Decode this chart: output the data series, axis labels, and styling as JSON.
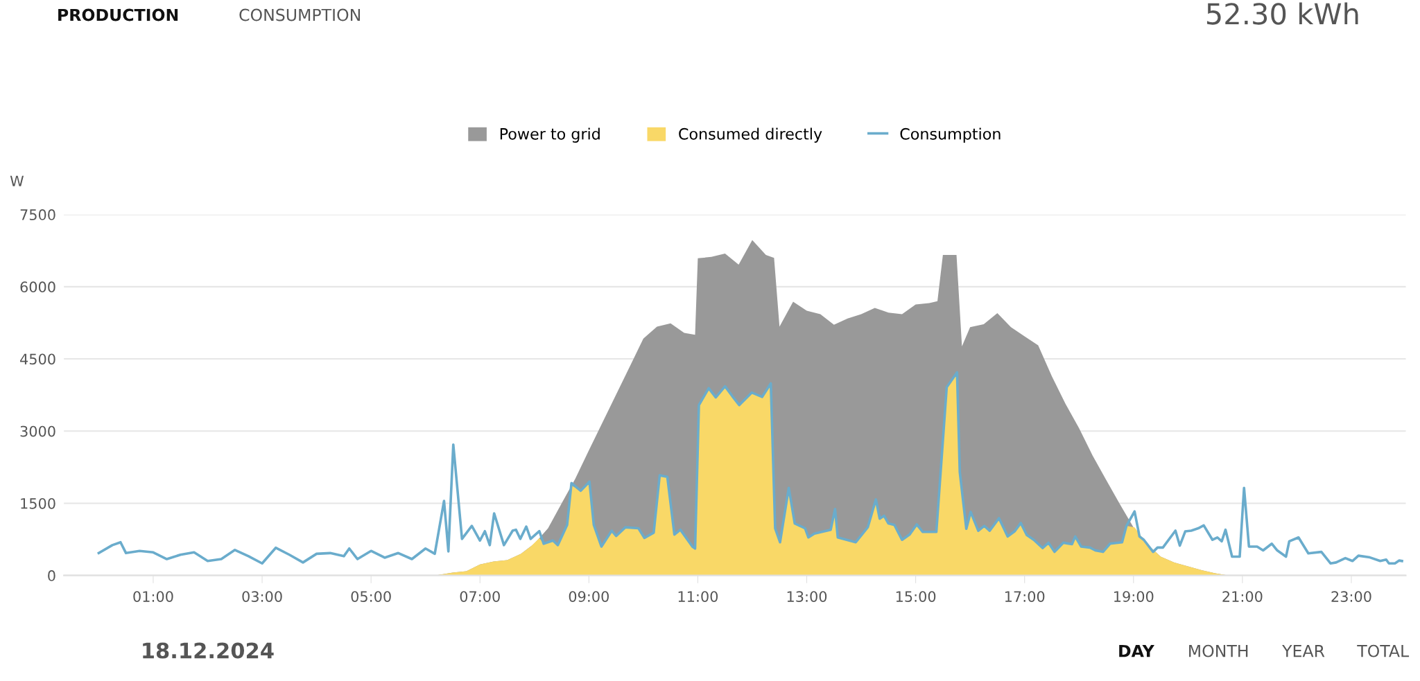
{
  "chart_data": {
    "type": "area",
    "ylabel": "W",
    "annotations": [
      "PRODUCTION",
      "CONSUMPTION",
      "52.30 kWh",
      "18.12.2024",
      "DAY",
      "MONTH",
      "YEAR",
      "TOTAL"
    ],
    "xlim": [
      -0.64,
      24.0
    ],
    "xticks": [
      {
        "value": 1,
        "label": "01:00"
      },
      {
        "value": 3,
        "label": "03:00"
      },
      {
        "value": 5,
        "label": "05:00"
      },
      {
        "value": 7,
        "label": "07:00"
      },
      {
        "value": 9,
        "label": "09:00"
      },
      {
        "value": 11,
        "label": "11:00"
      },
      {
        "value": 13,
        "label": "13:00"
      },
      {
        "value": 15,
        "label": "15:00"
      },
      {
        "value": 17,
        "label": "17:00"
      },
      {
        "value": 19,
        "label": "19:00"
      },
      {
        "value": 21,
        "label": "21:00"
      },
      {
        "value": 23,
        "label": "23:00"
      }
    ],
    "ylim": [
      0,
      7500
    ],
    "yticks": [
      0,
      1500,
      3000,
      4500,
      6000,
      7500
    ],
    "grid": "y",
    "legend": "top",
    "marker": "none",
    "line_style": "solid",
    "series": [
      {
        "name": "Power to grid",
        "color": "#999999",
        "x": [
          6.17,
          6.5,
          6.75,
          7.0,
          7.25,
          7.5,
          7.75,
          8.0,
          8.25,
          8.5,
          8.75,
          9.0,
          9.25,
          9.5,
          9.75,
          10.0,
          10.25,
          10.5,
          10.75,
          10.95,
          11.0,
          11.25,
          11.5,
          11.75,
          12.0,
          12.25,
          12.4,
          12.5,
          12.75,
          13.0,
          13.25,
          13.5,
          13.75,
          14.0,
          14.25,
          14.5,
          14.75,
          15.0,
          15.25,
          15.4,
          15.5,
          15.75,
          15.85,
          16.0,
          16.25,
          16.5,
          16.75,
          17.0,
          17.25,
          17.5,
          17.75,
          18.0,
          18.25,
          18.5,
          18.75,
          19.0,
          19.25,
          19.5,
          19.75,
          20.0,
          20.25,
          20.5,
          20.75
        ],
        "values": [
          0,
          60,
          90,
          230,
          290,
          320,
          450,
          660,
          980,
          1500,
          2010,
          2600,
          3180,
          3760,
          4340,
          4920,
          5170,
          5240,
          5040,
          5000,
          6590,
          6620,
          6690,
          6460,
          6970,
          6660,
          6600,
          5170,
          5690,
          5500,
          5430,
          5210,
          5340,
          5430,
          5560,
          5460,
          5430,
          5630,
          5660,
          5700,
          6660,
          6660,
          4760,
          5160,
          5220,
          5450,
          5160,
          4970,
          4780,
          4140,
          3570,
          3060,
          2490,
          1980,
          1480,
          1000,
          650,
          390,
          270,
          190,
          110,
          45,
          0
        ]
      },
      {
        "name": "Consumed directly",
        "color": "#f9d867",
        "x": [
          6.17,
          6.5,
          6.75,
          7.0,
          7.25,
          7.5,
          7.75,
          7.93,
          8.09,
          8.17,
          8.34,
          8.43,
          8.6,
          8.68,
          8.85,
          9.01,
          9.09,
          9.23,
          9.42,
          9.5,
          9.67,
          9.91,
          10.02,
          10.19,
          10.3,
          10.44,
          10.57,
          10.68,
          10.9,
          10.95,
          11.02,
          11.2,
          11.33,
          11.5,
          11.63,
          11.76,
          11.99,
          12.18,
          12.34,
          12.42,
          12.51,
          12.67,
          12.78,
          12.97,
          13.03,
          13.14,
          13.44,
          13.52,
          13.57,
          13.9,
          14.12,
          14.27,
          14.34,
          14.42,
          14.5,
          14.61,
          14.75,
          14.89,
          15.02,
          15.13,
          15.38,
          15.57,
          15.76,
          15.81,
          15.93,
          16.01,
          16.15,
          16.26,
          16.36,
          16.53,
          16.69,
          16.82,
          16.93,
          17.04,
          17.17,
          17.33,
          17.44,
          17.55,
          17.71,
          17.87,
          17.93,
          18.04,
          18.2,
          18.3,
          18.44,
          18.57,
          18.79,
          18.87,
          19.02,
          19.25,
          19.5,
          19.75,
          20.0,
          20.25,
          20.5,
          20.75
        ],
        "values": [
          0,
          60,
          90,
          230,
          290,
          320,
          450,
          600,
          775,
          660,
          725,
          630,
          1050,
          1870,
          1760,
          1950,
          1050,
          600,
          930,
          820,
          1000,
          980,
          780,
          890,
          2080,
          2050,
          850,
          950,
          600,
          560,
          3540,
          3890,
          3700,
          3930,
          3730,
          3540,
          3800,
          3710,
          3990,
          980,
          690,
          1820,
          1080,
          980,
          790,
          870,
          950,
          1380,
          790,
          690,
          1000,
          1580,
          1180,
          1240,
          1080,
          1050,
          740,
          850,
          1060,
          905,
          905,
          3910,
          4220,
          2150,
          970,
          1320,
          930,
          1030,
          930,
          1190,
          810,
          920,
          1090,
          840,
          740,
          570,
          680,
          490,
          680,
          650,
          810,
          600,
          580,
          520,
          490,
          660,
          690,
          1030,
          1000,
          650,
          390,
          270,
          190,
          110,
          45,
          0
        ]
      },
      {
        "name": "Consumption",
        "type": "line",
        "color": "#6aaccc",
        "x": [
          0.0,
          0.25,
          0.4,
          0.5,
          0.75,
          1.0,
          1.25,
          1.5,
          1.75,
          2.0,
          2.25,
          2.5,
          2.75,
          3.0,
          3.25,
          3.5,
          3.75,
          4.0,
          4.25,
          4.5,
          4.6,
          4.75,
          5.0,
          5.25,
          5.5,
          5.75,
          6.0,
          6.17,
          6.34,
          6.42,
          6.51,
          6.67,
          6.85,
          7.0,
          7.09,
          7.18,
          7.26,
          7.44,
          7.6,
          7.66,
          7.74,
          7.85,
          7.93,
          8.09,
          8.17,
          8.34,
          8.43,
          8.6,
          8.68,
          8.85,
          9.01,
          9.09,
          9.23,
          9.42,
          9.5,
          9.67,
          9.91,
          10.02,
          10.19,
          10.3,
          10.44,
          10.57,
          10.68,
          10.9,
          10.95,
          11.02,
          11.2,
          11.33,
          11.5,
          11.63,
          11.76,
          11.99,
          12.18,
          12.34,
          12.42,
          12.51,
          12.67,
          12.78,
          12.97,
          13.03,
          13.14,
          13.44,
          13.52,
          13.57,
          13.9,
          14.12,
          14.27,
          14.34,
          14.42,
          14.5,
          14.61,
          14.75,
          14.89,
          15.02,
          15.13,
          15.38,
          15.57,
          15.76,
          15.81,
          15.93,
          16.01,
          16.15,
          16.26,
          16.36,
          16.53,
          16.69,
          16.82,
          16.93,
          17.04,
          17.17,
          17.33,
          17.44,
          17.55,
          17.71,
          17.87,
          17.93,
          18.04,
          18.2,
          18.3,
          18.44,
          18.57,
          18.79,
          18.87,
          19.02,
          19.11,
          19.19,
          19.36,
          19.44,
          19.54,
          19.77,
          19.85,
          19.95,
          20.06,
          20.19,
          20.29,
          20.45,
          20.54,
          20.62,
          20.69,
          20.81,
          20.95,
          21.03,
          21.12,
          21.27,
          21.38,
          21.54,
          21.64,
          21.8,
          21.86,
          22.03,
          22.21,
          22.45,
          22.62,
          22.72,
          22.89,
          23.02,
          23.13,
          23.34,
          23.53,
          23.64,
          23.69,
          23.8,
          23.88,
          23.93
        ],
        "values": [
          465,
          630,
          690,
          465,
          510,
          480,
          340,
          430,
          480,
          300,
          340,
          530,
          400,
          250,
          575,
          430,
          270,
          450,
          465,
          400,
          560,
          340,
          510,
          370,
          465,
          340,
          560,
          450,
          1550,
          500,
          2720,
          760,
          1030,
          725,
          920,
          630,
          1290,
          630,
          930,
          950,
          760,
          1015,
          760,
          920,
          660,
          725,
          630,
          1050,
          1920,
          1760,
          1950,
          1050,
          600,
          930,
          820,
          1000,
          980,
          780,
          890,
          2080,
          2050,
          850,
          950,
          600,
          560,
          3540,
          3890,
          3700,
          3930,
          3730,
          3540,
          3800,
          3710,
          3990,
          980,
          690,
          1820,
          1080,
          980,
          790,
          870,
          950,
          1380,
          790,
          690,
          1000,
          1580,
          1180,
          1240,
          1080,
          1050,
          740,
          850,
          1060,
          905,
          905,
          3910,
          4220,
          2150,
          970,
          1320,
          930,
          1030,
          930,
          1190,
          810,
          920,
          1090,
          840,
          740,
          570,
          680,
          490,
          680,
          650,
          810,
          600,
          580,
          520,
          490,
          660,
          690,
          1030,
          1330,
          810,
          740,
          490,
          580,
          580,
          930,
          620,
          915,
          930,
          980,
          1040,
          740,
          790,
          710,
          950,
          390,
          390,
          1820,
          600,
          600,
          520,
          660,
          520,
          390,
          710,
          790,
          460,
          490,
          250,
          270,
          360,
          300,
          410,
          375,
          300,
          330,
          250,
          250,
          310,
          300
        ]
      }
    ]
  }
}
